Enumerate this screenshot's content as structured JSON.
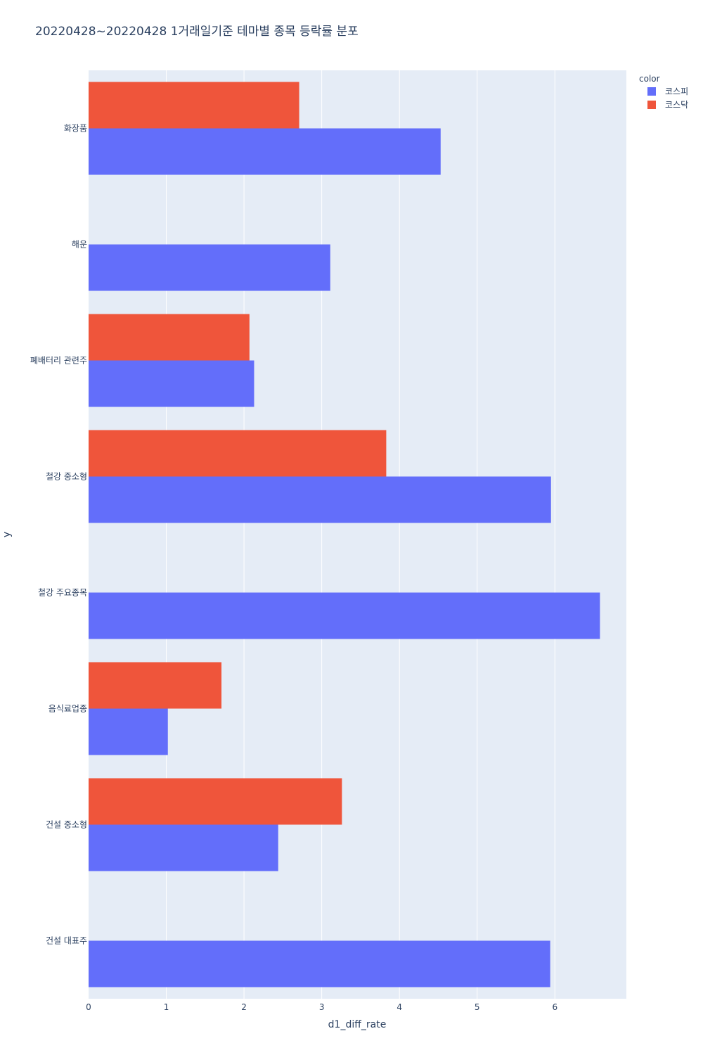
{
  "chart_data": {
    "type": "bar",
    "orientation": "horizontal",
    "barmode": "group",
    "title": "20220428~20220428 1거래일기준 테마별 종목 등락률 분포",
    "xlabel": "d1_diff_rate",
    "ylabel": "y",
    "xlim": [
      0,
      6.92
    ],
    "xticks": [
      "0",
      "1",
      "2",
      "3",
      "4",
      "5",
      "6"
    ],
    "grid": true,
    "legend": {
      "title": "color",
      "position": "top-right"
    },
    "categories": [
      "화장품",
      "해운",
      "폐배터리 관련주",
      "철강 중소형",
      "철강 주요종목",
      "음식료업종",
      "건설 중소형",
      "건설 대표주"
    ],
    "series": [
      {
        "name": "코스피",
        "color": "#636efa",
        "values": [
          4.53,
          3.11,
          2.13,
          5.95,
          6.58,
          1.02,
          2.44,
          5.94
        ]
      },
      {
        "name": "코스닥",
        "color": "#ef553b",
        "values": [
          2.71,
          null,
          2.07,
          3.83,
          null,
          1.71,
          3.26,
          null
        ]
      }
    ]
  },
  "colors": {
    "plot_bg": "#e5ecf6",
    "grid": "#ffffff",
    "text": "#2a3f5f"
  }
}
